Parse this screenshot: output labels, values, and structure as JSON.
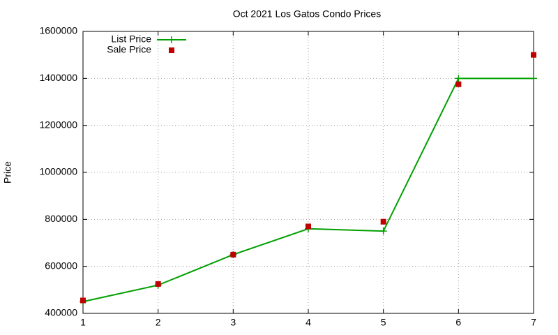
{
  "chart_data": {
    "type": "line",
    "title": "Oct 2021 Los Gatos Condo Prices",
    "y_label": "Price",
    "x": [
      1,
      2,
      3,
      4,
      5,
      6,
      7
    ],
    "series": [
      {
        "name": "List Price",
        "color": "#00a000",
        "style": "linespoints",
        "values": [
          450000,
          520000,
          650000,
          760000,
          750000,
          1400000,
          1400000
        ]
      },
      {
        "name": "Sale Price",
        "color": "#c00000",
        "style": "points",
        "values": [
          455000,
          525000,
          650000,
          770000,
          790000,
          1375000,
          1500000
        ]
      }
    ],
    "xlim": [
      1,
      7
    ],
    "xticks": [
      1,
      2,
      3,
      4,
      5,
      6,
      7
    ],
    "ylim": [
      400000,
      1600000
    ],
    "yticks": [
      400000,
      600000,
      800000,
      1000000,
      1200000,
      1400000,
      1600000
    ],
    "grid": true,
    "legend": "top-left"
  }
}
